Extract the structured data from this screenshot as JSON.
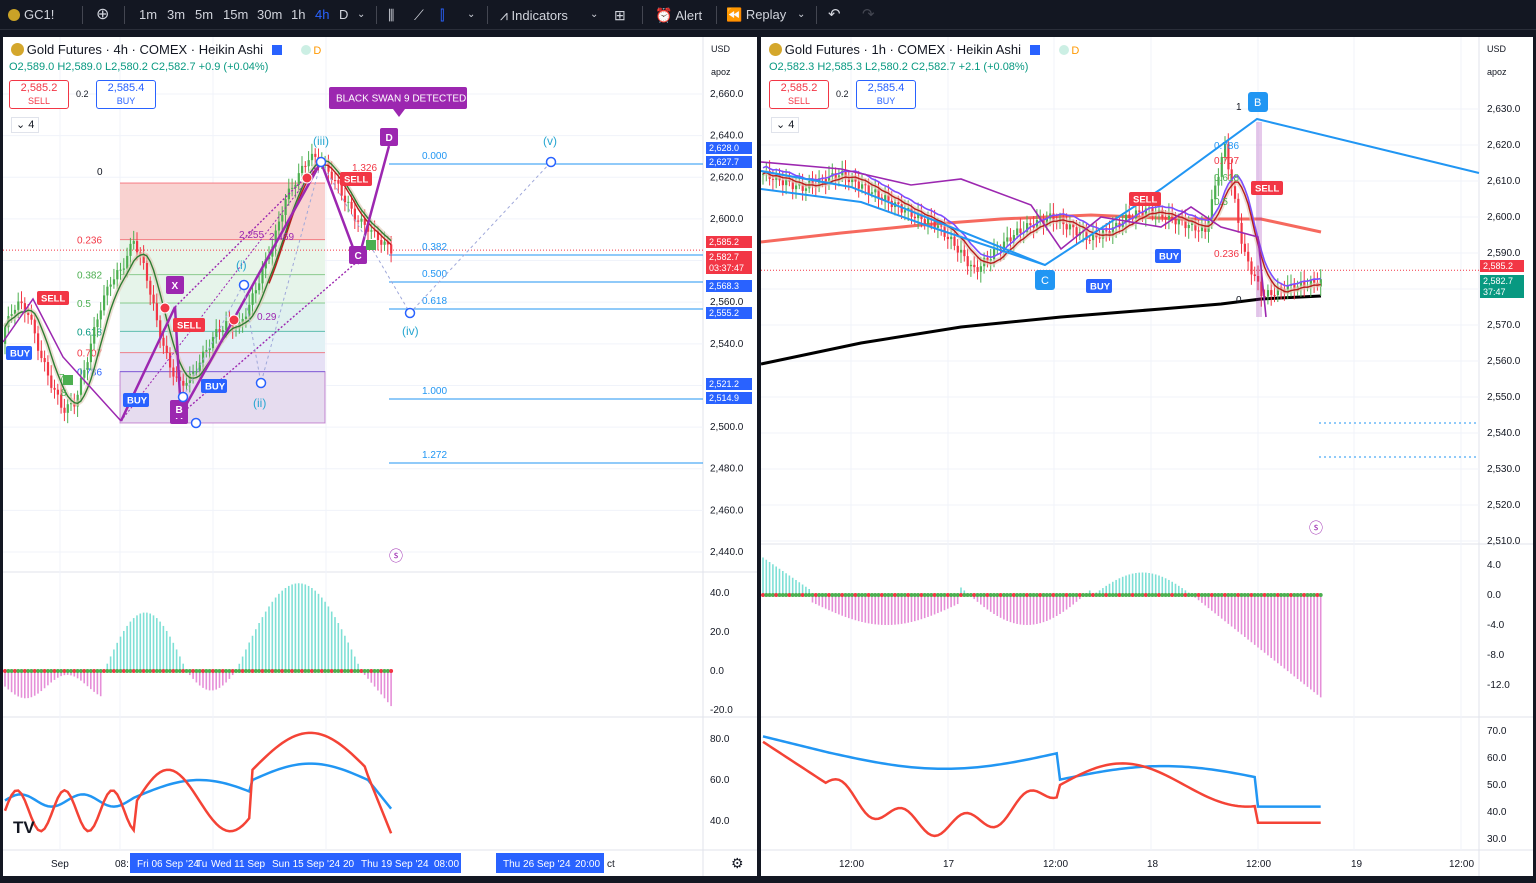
{
  "toolbar": {
    "symbol": "GC1!",
    "intervals": [
      "1m",
      "3m",
      "5m",
      "15m",
      "30m",
      "1h",
      "4h",
      "D"
    ],
    "active_interval": "4h",
    "indicators_label": "Indicators",
    "alert_label": "Alert",
    "replay_label": "Replay"
  },
  "left": {
    "title": "Gold Futures · 4h · COMEX · Heikin Ashi",
    "badge": "D",
    "ohlc": {
      "o": "O2,589.0",
      "h": "H2,589.0",
      "l": "L2,580.2",
      "c": "C2,582.7",
      "chg": "+0.9 (+0.04%)"
    },
    "sell_price": "2,585.2",
    "sell_label": "SELL",
    "spread": "0.2",
    "buy_price": "2,585.4",
    "buy_label": "BUY",
    "layers": "4",
    "currency": "USD",
    "scale_mode": "apoz",
    "price_scale": [
      "2,660.0",
      "2,640.0",
      "2,620.0",
      "2,600.0",
      "2,580.0",
      "2,560.0",
      "2,540.0",
      "2,520.0",
      "2,500.0",
      "2,480.0",
      "2,460.0",
      "2,440.0"
    ],
    "price_tags": [
      {
        "text": "2,628.0",
        "color": "#2962ff"
      },
      {
        "text": "2,627.7",
        "color": "#2962ff"
      },
      {
        "text": "2,585.2",
        "color": "#f23645"
      },
      {
        "text": "2,582.7",
        "color": "#f23645"
      },
      {
        "text": "03:37:47",
        "color": "#f23645"
      },
      {
        "text": "2,568.3",
        "color": "#2962ff"
      },
      {
        "text": "2,555.2",
        "color": "#2962ff"
      },
      {
        "text": "2,521.2",
        "color": "#2962ff"
      },
      {
        "text": "2,514.9",
        "color": "#2962ff"
      }
    ],
    "osc_scale": [
      "40.0",
      "20.0",
      "0.0",
      "-20.0"
    ],
    "rsi_scale": [
      "80.0",
      "60.0",
      "40.0"
    ],
    "time_axis": [
      "Sep",
      "08:",
      "Fri 06 Sep '24",
      "Tu",
      "Wed 11 Sep",
      "Sun 15 Sep '24",
      "20",
      "Thu 19 Sep '24",
      "08:00",
      "Thu 26 Sep '24",
      "20:00",
      "ct"
    ],
    "fib_left": [
      "0",
      "0.236",
      "0.382",
      "0.5",
      "0.618",
      "0.707",
      "0.786"
    ],
    "fib_right": [
      "0.000",
      "0.382",
      "0.500",
      "0.618",
      "1.000",
      "1.272"
    ],
    "waves": [
      "(iii)",
      "(i)",
      "(ii)",
      "(iv)",
      "(v)"
    ],
    "pattern": [
      "X",
      "A",
      "B",
      "C",
      "D"
    ],
    "black_swan": "BLACK SWAN 9 DETECTED",
    "sig_buy": "BUY",
    "sig_sell": "SELL",
    "extras": [
      "1.326",
      "2.255",
      "2.469",
      "0.29",
      "8",
      "7"
    ]
  },
  "right": {
    "title": "Gold Futures · 1h · COMEX · Heikin Ashi",
    "badge": "D",
    "ohlc": {
      "o": "O2,582.3",
      "h": "H2,585.3",
      "l": "L2,580.2",
      "c": "C2,582.7",
      "chg": "+2.1 (+0.08%)"
    },
    "sell_price": "2,585.2",
    "sell_label": "SELL",
    "spread": "0.2",
    "buy_price": "2,585.4",
    "buy_label": "BUY",
    "layers": "4",
    "currency": "USD",
    "scale_mode": "apoz",
    "price_scale": [
      "2,630.0",
      "2,620.0",
      "2,610.0",
      "2,600.0",
      "2,590.0",
      "2,580.0",
      "2,570.0",
      "2,560.0",
      "2,550.0",
      "2,540.0",
      "2,530.0",
      "2,520.0",
      "2,510.0"
    ],
    "price_tags": [
      {
        "text": "2,585.2",
        "color": "#f23645"
      },
      {
        "text": "2,582.7",
        "color": "#089981"
      },
      {
        "text": "37:47",
        "color": "#089981"
      }
    ],
    "osc_scale": [
      "4.0",
      "0.0",
      "-4.0",
      "-8.0",
      "-12.0"
    ],
    "rsi_scale": [
      "70.0",
      "60.0",
      "50.0",
      "40.0",
      "30.0"
    ],
    "time_axis": [
      "12:00",
      "17",
      "12:00",
      "18",
      "12:00",
      "19",
      "12:00"
    ],
    "fib": [
      "0.786",
      "0.707",
      "0.618",
      "0.5",
      "0.236",
      "0"
    ],
    "markers": [
      "C",
      "B",
      "1"
    ],
    "sig_buy": "BUY",
    "sig_sell": "SELL"
  }
}
